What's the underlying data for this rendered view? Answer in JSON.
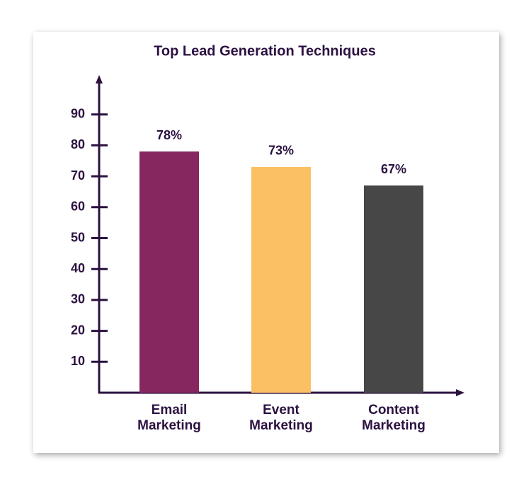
{
  "chart_data": {
    "type": "bar",
    "title": "Top Lead Generation Techniques",
    "categories": [
      "Email Marketing",
      "Event Marketing",
      "Content Marketing"
    ],
    "values": [
      78,
      73,
      67
    ],
    "value_labels": [
      "78%",
      "73%",
      "67%"
    ],
    "colors": [
      "#86285f",
      "#fbc063",
      "#474747"
    ],
    "ylim": [
      0,
      100
    ],
    "yticks": [
      10,
      20,
      30,
      40,
      50,
      60,
      70,
      80,
      90
    ]
  }
}
